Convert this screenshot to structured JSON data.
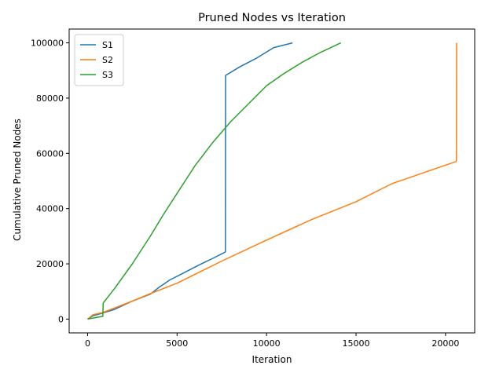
{
  "chart_data": {
    "type": "line",
    "title": "Pruned Nodes vs Iteration",
    "xlabel": "Iteration",
    "ylabel": "Cumulative Pruned Nodes",
    "xlim": [
      -1030,
      21630
    ],
    "ylim": [
      -5000,
      105000
    ],
    "xticks": [
      0,
      5000,
      10000,
      15000,
      20000
    ],
    "yticks": [
      0,
      20000,
      40000,
      60000,
      80000,
      100000
    ],
    "grid": false,
    "legend_position": "top-left",
    "series": [
      {
        "name": "S1",
        "color": "#1f77b4",
        "points": [
          [
            0,
            0
          ],
          [
            300,
            1200
          ],
          [
            850,
            2200
          ],
          [
            1500,
            3500
          ],
          [
            2500,
            6500
          ],
          [
            3500,
            9000
          ],
          [
            4000,
            11500
          ],
          [
            4600,
            14200
          ],
          [
            5300,
            16500
          ],
          [
            6200,
            19500
          ],
          [
            7000,
            22000
          ],
          [
            7700,
            24300
          ],
          [
            7710,
            88200
          ],
          [
            8500,
            91300
          ],
          [
            9400,
            94300
          ],
          [
            10400,
            98300
          ],
          [
            11450,
            100000
          ]
        ]
      },
      {
        "name": "S2",
        "color": "#ff7f0e",
        "points": [
          [
            0,
            0
          ],
          [
            300,
            1600
          ],
          [
            850,
            2400
          ],
          [
            1500,
            4000
          ],
          [
            2500,
            6500
          ],
          [
            3500,
            9200
          ],
          [
            5000,
            13000
          ],
          [
            7500,
            21000
          ],
          [
            10000,
            28600
          ],
          [
            12500,
            36000
          ],
          [
            15000,
            42500
          ],
          [
            17000,
            49000
          ],
          [
            19000,
            53500
          ],
          [
            20570,
            57000
          ],
          [
            20610,
            57200
          ],
          [
            20620,
            100000
          ]
        ]
      },
      {
        "name": "S3",
        "color": "#2ca02c",
        "points": [
          [
            0,
            0
          ],
          [
            850,
            1000
          ],
          [
            870,
            5800
          ],
          [
            1500,
            11000
          ],
          [
            2500,
            20000
          ],
          [
            3500,
            30000
          ],
          [
            4200,
            37500
          ],
          [
            5000,
            45500
          ],
          [
            6000,
            55500
          ],
          [
            7000,
            64000
          ],
          [
            8000,
            71500
          ],
          [
            9000,
            78000
          ],
          [
            10000,
            84500
          ],
          [
            11000,
            89000
          ],
          [
            12000,
            93000
          ],
          [
            13000,
            96500
          ],
          [
            14150,
            100000
          ]
        ]
      }
    ]
  }
}
